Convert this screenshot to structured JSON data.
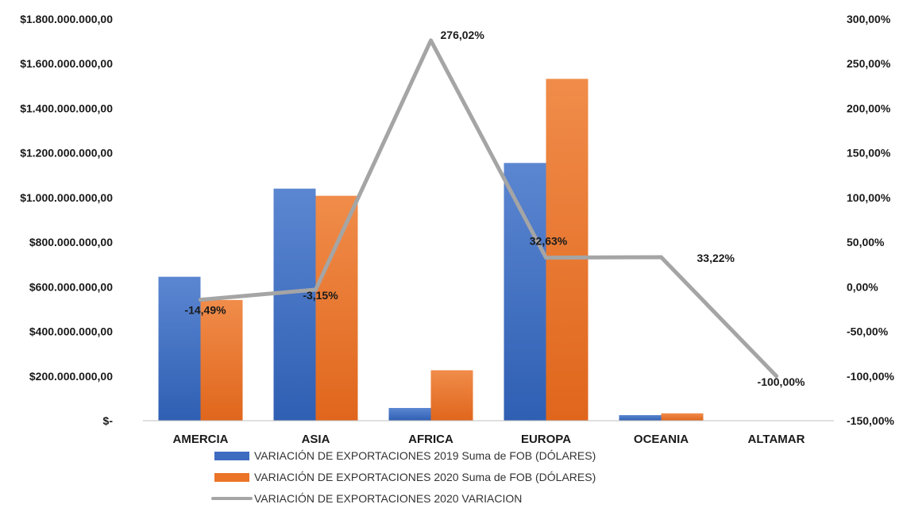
{
  "chart_data": {
    "type": "bar",
    "categories": [
      "AMERCIA",
      "ASIA",
      "AFRICA",
      "EUROPA",
      "OCEANIA",
      "ALTAMAR"
    ],
    "series": [
      {
        "name": "VARIACIÓN DE EXPORTACIONES  2019 Suma de FOB (DÓLARES)",
        "type": "bar",
        "axis": "left",
        "color": "#4472c4",
        "values": [
          645000000,
          1040000000,
          57000000,
          1155000000,
          25000000,
          0
        ]
      },
      {
        "name": "VARIACIÓN DE EXPORTACIONES  2020 Suma de FOB (DÓLARES)",
        "type": "bar",
        "axis": "left",
        "color": "#ed7d31",
        "values": [
          541000000,
          1008000000,
          226000000,
          1532000000,
          33000000,
          0
        ]
      },
      {
        "name": "VARIACIÓN DE EXPORTACIONES  2020 VARIACION",
        "type": "line",
        "axis": "right",
        "color": "#a5a5a5",
        "values": [
          -14.49,
          -3.15,
          276.02,
          32.63,
          33.22,
          -100.0
        ],
        "labels": [
          "-14,49%",
          "-3,15%",
          "276,02%",
          "32,63%",
          "33,22%",
          "-100,00%"
        ]
      }
    ],
    "y_left": {
      "ylim": [
        0,
        1800000000
      ],
      "ticks": [
        {
          "value": 1800000000,
          "label": "$1.800.000.000,00"
        },
        {
          "value": 1600000000,
          "label": "$1.600.000.000,00"
        },
        {
          "value": 1400000000,
          "label": "$1.400.000.000,00"
        },
        {
          "value": 1200000000,
          "label": "$1.200.000.000,00"
        },
        {
          "value": 1000000000,
          "label": "$1.000.000.000,00"
        },
        {
          "value": 800000000,
          "label": "$800.000.000,00"
        },
        {
          "value": 600000000,
          "label": "$600.000.000,00"
        },
        {
          "value": 400000000,
          "label": "$400.000.000,00"
        },
        {
          "value": 200000000,
          "label": "$200.000.000,00"
        },
        {
          "value": 0,
          "label": "$-"
        }
      ]
    },
    "y_right": {
      "ylim": [
        -150,
        300
      ],
      "ticks": [
        {
          "value": 300,
          "label": "300,00%"
        },
        {
          "value": 250,
          "label": "250,00%"
        },
        {
          "value": 200,
          "label": "200,00%"
        },
        {
          "value": 150,
          "label": "150,00%"
        },
        {
          "value": 100,
          "label": "100,00%"
        },
        {
          "value": 50,
          "label": "50,00%"
        },
        {
          "value": 0,
          "label": "0,00%"
        },
        {
          "value": -50,
          "label": "-50,00%"
        },
        {
          "value": -100,
          "label": "-100,00%"
        },
        {
          "value": -150,
          "label": "-150,00%"
        }
      ]
    },
    "title": "",
    "xlabel": "",
    "grid": false,
    "legend_position": "bottom"
  }
}
